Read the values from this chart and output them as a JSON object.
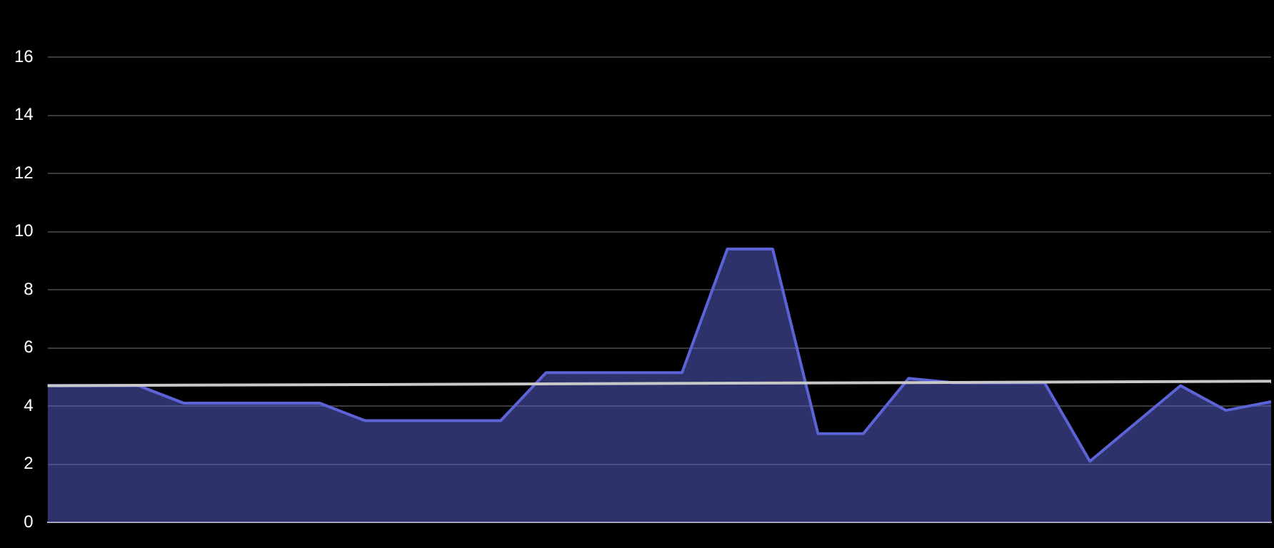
{
  "chart_data": {
    "type": "area",
    "categories": [
      null,
      null,
      null,
      null,
      null,
      null,
      null,
      null,
      null,
      null,
      null,
      null,
      null,
      null,
      null,
      null,
      null,
      null,
      null,
      null,
      null,
      null,
      null,
      null,
      null,
      null,
      null,
      null
    ],
    "series": [
      {
        "color": "#5b63d6",
        "values": [
          4.7,
          4.7,
          4.7,
          4.1,
          4.1,
          4.1,
          4.1,
          3.5,
          3.5,
          3.5,
          3.5,
          5.15,
          5.15,
          5.15,
          5.15,
          9.4,
          9.4,
          3.05,
          3.05,
          4.95,
          4.8,
          4.8,
          4.8,
          2.1,
          3.4,
          4.7,
          3.85,
          4.15
        ]
      },
      {
        "type": "line",
        "color": "#c8c8c8",
        "values": [
          4.7,
          null,
          null,
          null,
          null,
          null,
          null,
          null,
          null,
          null,
          null,
          null,
          null,
          null,
          null,
          null,
          null,
          null,
          null,
          null,
          null,
          null,
          null,
          null,
          null,
          null,
          null,
          4.85
        ]
      }
    ],
    "ylim": [
      0,
      16
    ],
    "yticks": [
      0,
      2,
      4,
      6,
      8,
      10,
      12,
      14,
      16
    ],
    "grid": "y",
    "tick_labels": "y",
    "legend": false,
    "marker": "none"
  }
}
